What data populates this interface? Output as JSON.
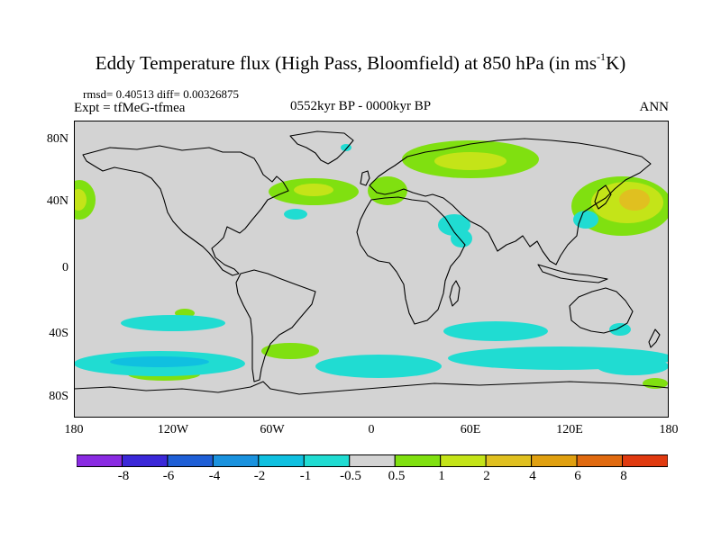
{
  "title": {
    "main": "Eddy Temperature flux (High Pass, Bloomfield) at 850 hPa (in ms",
    "exponent": "-1",
    "unit_end": "K)"
  },
  "stats": "rmsd= 0.40513 diff= 0.00326875",
  "experiment": "Expt = tfMeG-tfmea",
  "period": "0552kyr BP - 0000kyr BP",
  "season": "ANN",
  "axes": {
    "y_ticks": [
      "80N",
      "40N",
      "0",
      "40S",
      "80S"
    ],
    "x_ticks": [
      "180",
      "120W",
      "60W",
      "0",
      "60E",
      "120E",
      "180"
    ]
  },
  "colorbar": {
    "labels": [
      "-8",
      "-6",
      "-4",
      "-2",
      "-1",
      "-0.5",
      "0.5",
      "1",
      "2",
      "4",
      "6",
      "8"
    ],
    "colors": [
      "#8a2be2",
      "#3b28d8",
      "#1f5fd6",
      "#1a92de",
      "#10c0e0",
      "#20dcd2",
      "#d3d3d3",
      "#80e010",
      "#c4e418",
      "#e0c020",
      "#e0a010",
      "#e06a10",
      "#e03a10"
    ]
  },
  "colors": {
    "land_sea_bg": "#d3d3d3",
    "coastline": "#000000",
    "positive_low": "#80e010",
    "positive_mid": "#c4e418",
    "positive_high": "#e0c020",
    "negative_low": "#20dcd2",
    "negative_mid": "#10c0e0"
  }
}
